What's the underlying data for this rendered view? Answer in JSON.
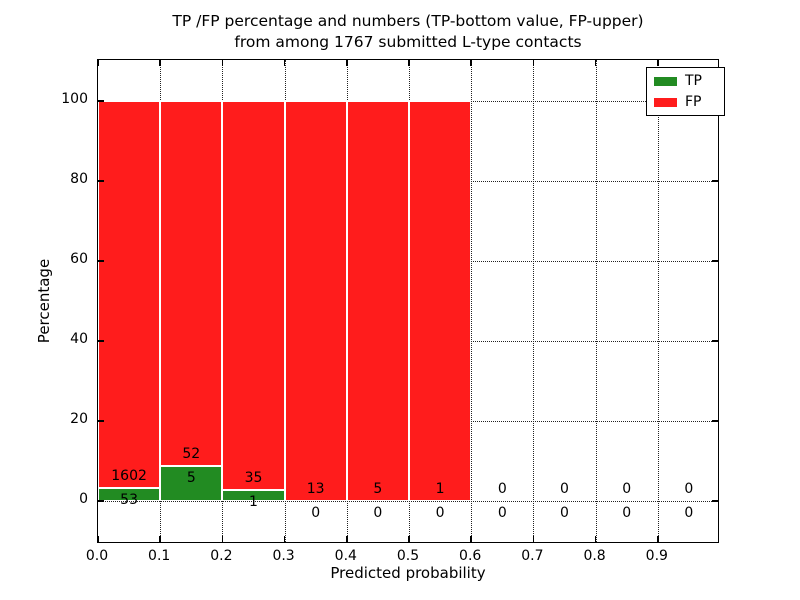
{
  "title": {
    "line1": "TP /FP percentage and numbers (TP-bottom value, FP-upper)",
    "line2": "from among 1767 submitted L-type contacts"
  },
  "legend": {
    "items": [
      {
        "label": "TP",
        "color": "#228b22"
      },
      {
        "label": "FP",
        "color": "#ff1c1c"
      }
    ]
  },
  "chart_data": {
    "type": "bar",
    "stacked": true,
    "title": "TP /FP percentage and numbers (TP-bottom value, FP-upper) from among 1767 submitted L-type contacts",
    "xlabel": "Predicted probability",
    "ylabel": "Percentage",
    "total_contacts": 1767,
    "bin_width": 0.1,
    "bin_starts": [
      0.0,
      0.1,
      0.2,
      0.3,
      0.4,
      0.5,
      0.6,
      0.7,
      0.8,
      0.9
    ],
    "xtick_labels": [
      "0.0",
      "0.1",
      "0.2",
      "0.3",
      "0.4",
      "0.5",
      "0.6",
      "0.7",
      "0.8",
      "0.9"
    ],
    "ytick_values": [
      0,
      20,
      40,
      60,
      80,
      100
    ],
    "xlim": [
      0.0,
      1.0
    ],
    "ylim": [
      -11,
      110
    ],
    "grid": true,
    "legend_position": "upper right",
    "bar_unit": "percent of bin total; TP (bottom) + FP (top) stack to 100% for non-empty bins",
    "series": [
      {
        "name": "TP",
        "color": "#228b22",
        "counts": [
          53,
          5,
          1,
          0,
          0,
          0,
          0,
          0,
          0,
          0
        ]
      },
      {
        "name": "FP",
        "color": "#ff1c1c",
        "counts": [
          1602,
          52,
          35,
          13,
          5,
          1,
          0,
          0,
          0,
          0
        ]
      }
    ]
  }
}
